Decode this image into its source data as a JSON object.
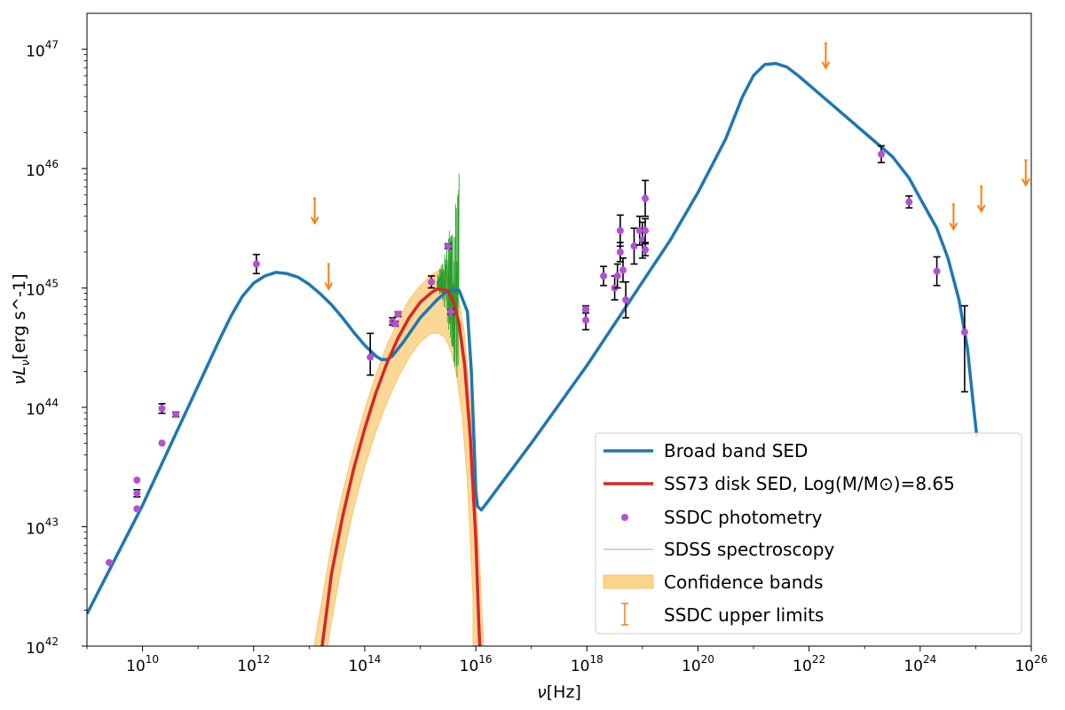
{
  "chart_data": {
    "type": "line",
    "x_scale": "log",
    "y_scale": "log",
    "xlim": [
      9.0,
      26.0
    ],
    "ylim": [
      42.0,
      47.3
    ],
    "xlabel_pre": "ν",
    "xlabel_post": "[Hz]",
    "ylabel_pre": "νL",
    "ylabel_sub": "ν",
    "ylabel_post": "[erg s^-1]",
    "x_ticks": [
      {
        "exp": 10,
        "base": "10",
        "label": "10"
      },
      {
        "exp": 12,
        "base": "10",
        "label": "12"
      },
      {
        "exp": 14,
        "base": "10",
        "label": "14"
      },
      {
        "exp": 16,
        "base": "10",
        "label": "16"
      },
      {
        "exp": 18,
        "base": "10",
        "label": "18"
      },
      {
        "exp": 20,
        "base": "10",
        "label": "20"
      },
      {
        "exp": 22,
        "base": "10",
        "label": "22"
      },
      {
        "exp": 24,
        "base": "10",
        "label": "24"
      },
      {
        "exp": 26,
        "base": "10",
        "label": "26"
      }
    ],
    "y_ticks": [
      {
        "exp": 42,
        "base": "10",
        "label": "42"
      },
      {
        "exp": 43,
        "base": "10",
        "label": "43"
      },
      {
        "exp": 44,
        "base": "10",
        "label": "44"
      },
      {
        "exp": 45,
        "base": "10",
        "label": "45"
      },
      {
        "exp": 46,
        "base": "10",
        "label": "46"
      },
      {
        "exp": 47,
        "base": "10",
        "label": "47"
      }
    ],
    "colors": {
      "broad": "#1f77b4",
      "disk": "#d62728",
      "band": "#fdd38a",
      "band_edge": "#f9c46c",
      "photometry": "#b44fd6",
      "spectrum": "#2ca02c",
      "upper": "#ff7f0e",
      "error": "#000000"
    },
    "series": [
      {
        "name": "Broad band SED",
        "kind": "line",
        "points": [
          [
            9.0,
            42.27
          ],
          [
            10.0,
            43.18
          ],
          [
            11.0,
            44.18
          ],
          [
            11.4,
            44.58
          ],
          [
            11.6,
            44.77
          ],
          [
            11.8,
            44.93
          ],
          [
            12.0,
            45.04
          ],
          [
            12.2,
            45.1
          ],
          [
            12.4,
            45.13
          ],
          [
            12.6,
            45.12
          ],
          [
            12.8,
            45.09
          ],
          [
            13.0,
            45.03
          ],
          [
            13.2,
            44.95
          ],
          [
            13.4,
            44.86
          ],
          [
            13.6,
            44.75
          ],
          [
            13.8,
            44.63
          ],
          [
            14.0,
            44.52
          ],
          [
            14.2,
            44.43
          ],
          [
            14.3,
            44.4
          ],
          [
            14.4,
            44.4
          ],
          [
            14.5,
            44.43
          ],
          [
            14.7,
            44.55
          ],
          [
            15.0,
            44.75
          ],
          [
            15.3,
            44.9
          ],
          [
            15.5,
            44.98
          ],
          [
            15.7,
            44.98
          ],
          [
            15.85,
            44.8
          ],
          [
            15.92,
            44.3
          ],
          [
            15.97,
            43.7
          ],
          [
            16.0,
            43.3
          ],
          [
            16.03,
            43.17
          ],
          [
            16.1,
            43.14
          ],
          [
            16.2,
            43.2
          ],
          [
            17.0,
            43.7
          ],
          [
            18.0,
            44.35
          ],
          [
            18.5,
            44.7
          ],
          [
            19.0,
            45.05
          ],
          [
            19.5,
            45.4
          ],
          [
            20.0,
            45.8
          ],
          [
            20.5,
            46.25
          ],
          [
            20.8,
            46.6
          ],
          [
            21.0,
            46.78
          ],
          [
            21.2,
            46.87
          ],
          [
            21.4,
            46.88
          ],
          [
            21.6,
            46.85
          ],
          [
            21.8,
            46.78
          ],
          [
            22.0,
            46.7
          ],
          [
            22.5,
            46.5
          ],
          [
            23.0,
            46.3
          ],
          [
            23.5,
            46.1
          ],
          [
            23.8,
            45.92
          ],
          [
            24.0,
            45.75
          ],
          [
            24.3,
            45.5
          ],
          [
            24.5,
            45.25
          ],
          [
            24.7,
            44.9
          ],
          [
            24.85,
            44.5
          ],
          [
            24.95,
            44.05
          ],
          [
            25.02,
            43.75
          ]
        ]
      },
      {
        "name": "SS73 disk SED, Log(M/M⊙)=8.65",
        "kind": "line",
        "points": [
          [
            13.2,
            41.88
          ],
          [
            13.4,
            42.6
          ],
          [
            13.6,
            43.08
          ],
          [
            13.8,
            43.48
          ],
          [
            14.0,
            43.82
          ],
          [
            14.2,
            44.12
          ],
          [
            14.4,
            44.37
          ],
          [
            14.6,
            44.58
          ],
          [
            14.8,
            44.75
          ],
          [
            15.0,
            44.88
          ],
          [
            15.2,
            44.96
          ],
          [
            15.3,
            44.99
          ],
          [
            15.4,
            44.99
          ],
          [
            15.5,
            44.97
          ],
          [
            15.6,
            44.88
          ],
          [
            15.7,
            44.7
          ],
          [
            15.8,
            44.35
          ],
          [
            15.9,
            43.75
          ],
          [
            16.0,
            42.9
          ],
          [
            16.05,
            42.25
          ],
          [
            16.08,
            41.9
          ]
        ]
      },
      {
        "name": "Confidence bands",
        "kind": "band",
        "upper": [
          [
            13.05,
            41.9
          ],
          [
            13.2,
            42.3
          ],
          [
            13.4,
            42.85
          ],
          [
            13.6,
            43.28
          ],
          [
            13.8,
            43.65
          ],
          [
            14.0,
            43.98
          ],
          [
            14.2,
            44.27
          ],
          [
            14.4,
            44.52
          ],
          [
            14.6,
            44.72
          ],
          [
            14.8,
            44.9
          ],
          [
            15.0,
            45.02
          ],
          [
            15.2,
            45.11
          ],
          [
            15.35,
            45.15
          ],
          [
            15.5,
            45.13
          ],
          [
            15.6,
            45.06
          ],
          [
            15.7,
            44.9
          ],
          [
            15.8,
            44.6
          ],
          [
            15.9,
            44.05
          ],
          [
            16.0,
            43.25
          ],
          [
            16.08,
            42.6
          ],
          [
            16.15,
            41.9
          ]
        ],
        "lower": [
          [
            15.95,
            41.9
          ],
          [
            15.95,
            42.4
          ],
          [
            15.85,
            43.38
          ],
          [
            15.75,
            43.95
          ],
          [
            15.65,
            44.28
          ],
          [
            15.55,
            44.48
          ],
          [
            15.45,
            44.58
          ],
          [
            15.35,
            44.62
          ],
          [
            15.2,
            44.62
          ],
          [
            15.0,
            44.55
          ],
          [
            14.8,
            44.42
          ],
          [
            14.6,
            44.25
          ],
          [
            14.4,
            44.04
          ],
          [
            14.2,
            43.8
          ],
          [
            14.0,
            43.5
          ],
          [
            13.8,
            43.15
          ],
          [
            13.6,
            42.72
          ],
          [
            13.4,
            42.2
          ],
          [
            13.3,
            41.9
          ]
        ]
      },
      {
        "name": "SSDC photometry",
        "kind": "points",
        "points": [
          [
            9.4,
            42.7,
            0,
            0
          ],
          [
            9.9,
            43.15,
            0,
            0
          ],
          [
            9.9,
            43.28,
            0.03,
            0.03
          ],
          [
            9.9,
            43.39,
            0,
            0
          ],
          [
            10.35,
            43.7,
            0,
            0
          ],
          [
            10.35,
            43.99,
            0.04,
            0.04
          ],
          [
            10.6,
            43.94,
            0.02,
            0.02
          ],
          [
            12.05,
            45.2,
            0.08,
            0.08
          ],
          [
            14.1,
            44.42,
            0.2,
            0.15
          ],
          [
            14.5,
            44.72,
            0.03,
            0.03
          ],
          [
            14.6,
            44.78,
            0.02,
            0.02
          ],
          [
            14.55,
            44.7,
            0.02,
            0.02
          ],
          [
            15.2,
            45.05,
            0.05,
            0.05
          ],
          [
            15.5,
            45.35,
            0.02,
            0.02
          ],
          [
            15.55,
            44.8,
            0.02,
            0.02
          ],
          [
            17.98,
            44.73,
            0.08,
            0.08
          ],
          [
            17.98,
            44.82,
            0.03,
            0.03
          ],
          [
            18.3,
            45.1,
            0.08,
            0.08
          ],
          [
            18.5,
            45.0,
            0.1,
            0.1
          ],
          [
            18.55,
            45.1,
            0.1,
            0.1
          ],
          [
            18.6,
            45.3,
            0.08,
            0.08
          ],
          [
            18.6,
            45.48,
            0.13,
            0.13
          ],
          [
            18.65,
            45.15,
            0.1,
            0.1
          ],
          [
            18.7,
            44.9,
            0.15,
            0.15
          ],
          [
            18.85,
            45.35,
            0.15,
            0.15
          ],
          [
            18.95,
            45.48,
            0.12,
            0.12
          ],
          [
            19.0,
            45.4,
            0.15,
            0.15
          ],
          [
            19.05,
            45.48,
            0.1,
            0.1
          ],
          [
            19.05,
            45.32,
            0.05,
            0.05
          ],
          [
            19.05,
            45.75,
            0.15,
            0.15
          ],
          [
            23.3,
            46.12,
            0.07,
            0.07
          ],
          [
            23.8,
            45.72,
            0.05,
            0.05
          ],
          [
            24.3,
            45.14,
            0.12,
            0.12
          ],
          [
            24.8,
            44.63,
            0.22,
            0.5
          ]
        ]
      },
      {
        "name": "SDSS spectroscopy",
        "kind": "spectrum",
        "range": [
          15.3,
          15.7
        ],
        "level": 45.05
      },
      {
        "name": "SSDC upper limits",
        "kind": "limits",
        "points": [
          [
            13.1,
            45.75
          ],
          [
            13.35,
            45.2
          ],
          [
            22.3,
            47.05
          ],
          [
            24.6,
            45.7
          ],
          [
            25.1,
            45.85
          ],
          [
            25.9,
            46.07
          ]
        ]
      }
    ],
    "legend": {
      "position": "lower-right",
      "entries": [
        {
          "label": "Broad band SED",
          "swatch": "line-blue"
        },
        {
          "label": "SS73 disk SED, Log(M/M⊙)=8.65",
          "swatch": "line-red"
        },
        {
          "label": "SSDC photometry",
          "swatch": "dot"
        },
        {
          "label": "SDSS spectroscopy",
          "swatch": "line-green"
        },
        {
          "label": "Confidence bands",
          "swatch": "band"
        },
        {
          "label": "SSDC upper limits",
          "swatch": "limit"
        }
      ]
    }
  }
}
